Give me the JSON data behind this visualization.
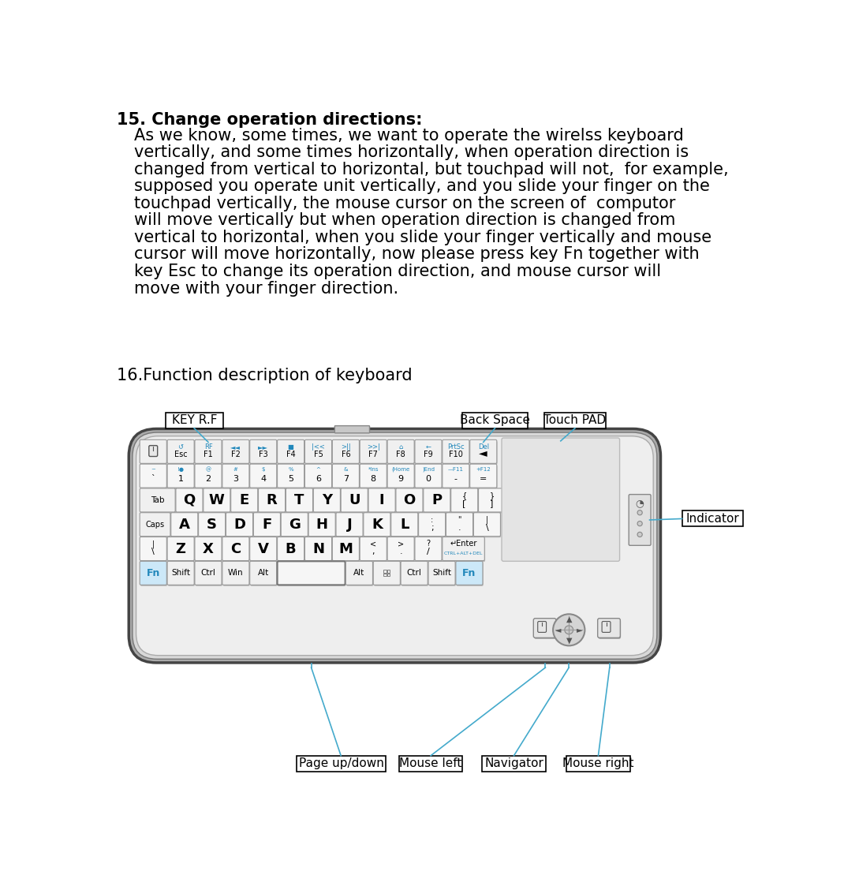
{
  "title_15": "15. Change operation directions:",
  "body_15": [
    "As we know, some times, we want to operate the wirelss keyboard",
    "vertically, and some times horizontally, when operation direction is",
    "changed from vertical to horizontal, but touchpad will not,  for example,",
    "supposed you operate unit vertically, and you slide your finger on the",
    "touchpad vertically, the mouse cursor on the screen of  computor",
    "will move vertically but when operation direction is changed from",
    "vertical to horizontal, when you slide your finger vertically and mouse",
    "cursor will move horizontally, now please press key Fn together with",
    "key Esc to change its operation direction, and mouse cursor will",
    "move with your finger direction."
  ],
  "title_16": "16.Function description of keyboard",
  "label_key_rf": "KEY R.F",
  "label_back_space": "Back Space",
  "label_touch_pad": "Touch PAD",
  "label_indicator": "Indicator",
  "label_mouse_left": "Mouse left",
  "label_navigator": "Navigator",
  "label_mouse_right": "Mouse right",
  "label_page_up_down": "Page up/down",
  "bg_color": "#ffffff",
  "text_color": "#000000",
  "blue_color": "#2288bb",
  "line_color": "#44aacc"
}
